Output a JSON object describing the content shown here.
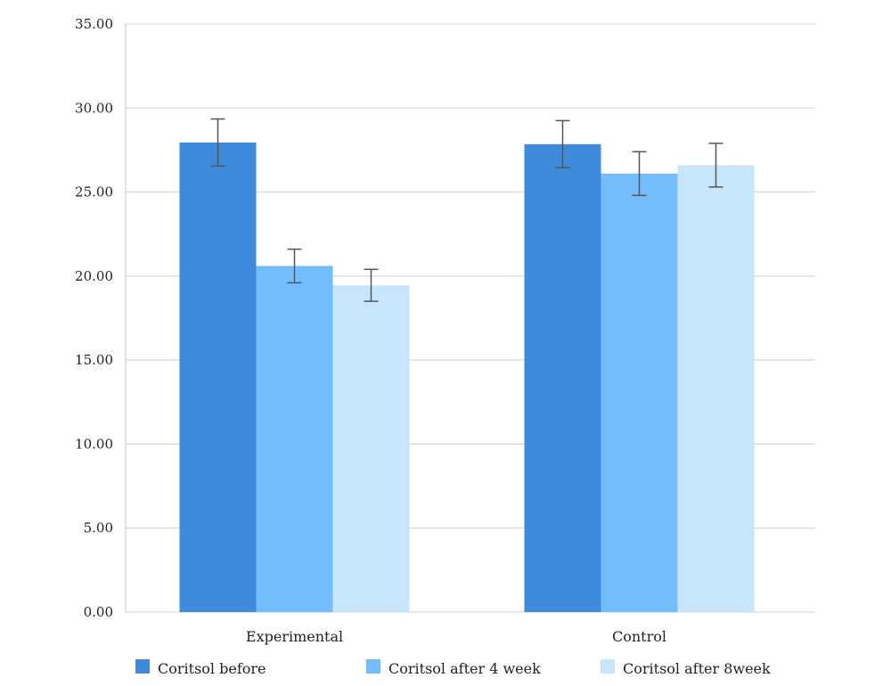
{
  "chart_data": {
    "type": "bar",
    "categories": [
      "Experimental",
      "Control"
    ],
    "series": [
      {
        "name": "Coritsol before",
        "values": [
          27.95,
          27.85
        ],
        "errors": [
          1.4,
          1.4
        ],
        "color": "#3f8bdb"
      },
      {
        "name": "Coritsol after 4 week",
        "values": [
          20.6,
          26.1
        ],
        "errors": [
          1.0,
          1.3
        ],
        "color": "#74bdfc"
      },
      {
        "name": "Coritsol after 8week",
        "values": [
          19.45,
          26.6
        ],
        "errors": [
          0.95,
          1.3
        ],
        "color": "#c7e5fb"
      }
    ],
    "ylim": [
      0,
      35
    ],
    "yticks": [
      "0.00",
      "5.00",
      "10.00",
      "15.00",
      "20.00",
      "25.00",
      "30.00",
      "35.00"
    ],
    "grid": true,
    "legend_position": "bottom"
  }
}
